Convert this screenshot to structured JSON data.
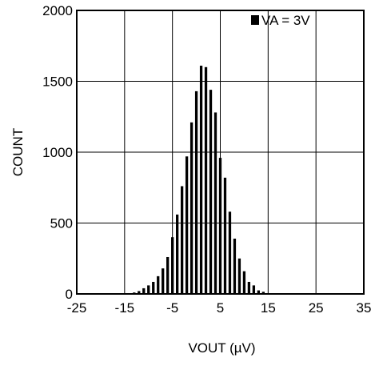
{
  "chart_data": {
    "type": "bar",
    "xlabel": "VOUT (µV)",
    "ylabel": "COUNT",
    "xlim": [
      -25,
      35
    ],
    "ylim": [
      0,
      2000
    ],
    "xticks": [
      -25,
      -15,
      -5,
      5,
      15,
      25,
      35
    ],
    "yticks": [
      0,
      500,
      1000,
      1500,
      2000
    ],
    "grid": true,
    "legend_position": "top-right",
    "colors": {
      "bars": "#000000",
      "grid": "#000000",
      "background": "#ffffff"
    },
    "series": [
      {
        "name": "VA = 3V",
        "x": [
          -14,
          -13,
          -12,
          -11,
          -10,
          -9,
          -8,
          -7,
          -6,
          -5,
          -4,
          -3,
          -2,
          -1,
          0,
          1,
          2,
          3,
          4,
          5,
          6,
          7,
          8,
          9,
          10,
          11,
          12,
          13,
          14
        ],
        "values": [
          5,
          10,
          20,
          40,
          60,
          85,
          125,
          180,
          260,
          400,
          560,
          760,
          970,
          1210,
          1430,
          1610,
          1600,
          1440,
          1280,
          960,
          820,
          580,
          390,
          250,
          160,
          85,
          60,
          25,
          15
        ]
      }
    ]
  }
}
